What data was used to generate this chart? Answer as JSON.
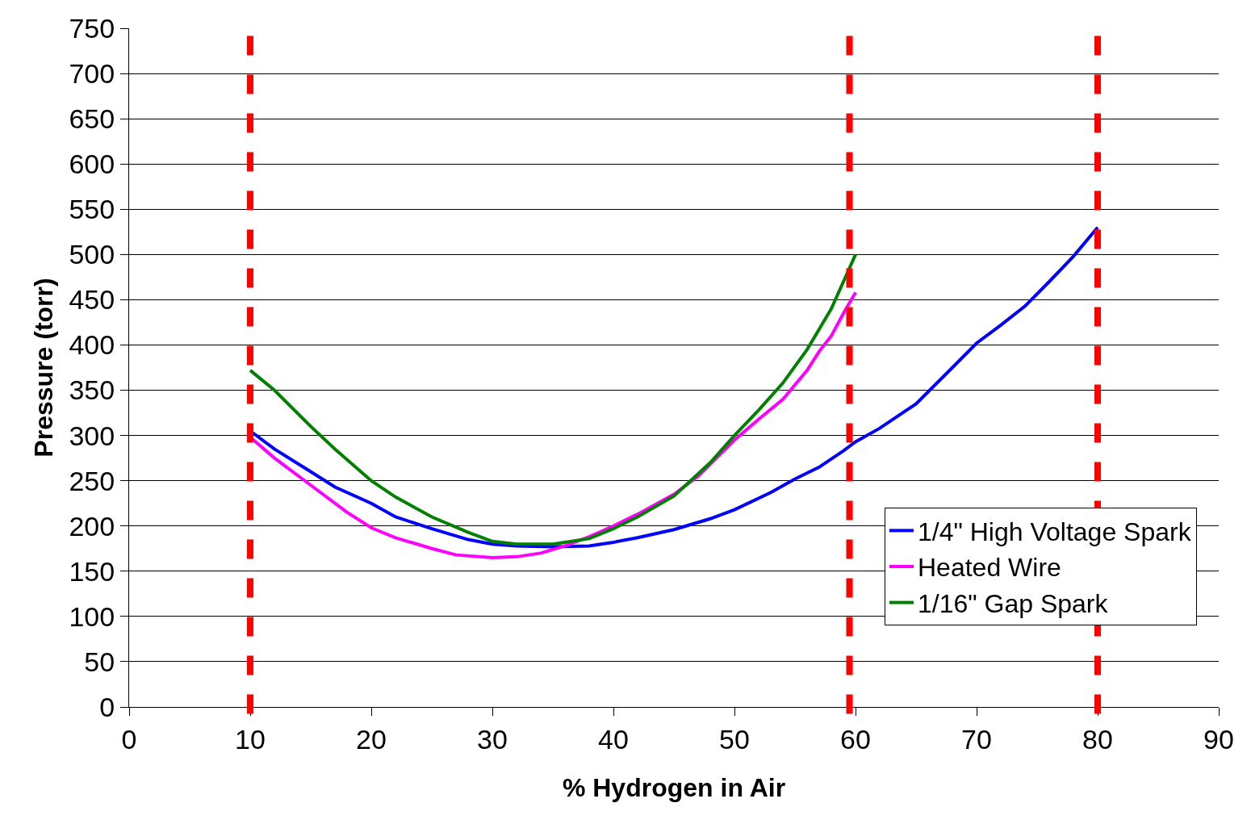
{
  "chart_data": {
    "type": "line",
    "xlabel": "% Hydrogen in Air",
    "ylabel": "Pressure (torr)",
    "xlim": [
      0,
      90
    ],
    "xticks": [
      0,
      10,
      20,
      30,
      40,
      50,
      60,
      70,
      80,
      90
    ],
    "ylim": [
      0,
      750
    ],
    "yticks": [
      0,
      50,
      100,
      150,
      200,
      250,
      300,
      350,
      400,
      450,
      500,
      550,
      600,
      650,
      700,
      750
    ],
    "grid": "y",
    "legend": "bottom right",
    "line_style": "solid",
    "marker": "none",
    "series": [
      {
        "name": "1/4\" High Voltage Spark",
        "color": "#0000ff",
        "x": [
          10,
          12,
          15,
          17,
          20,
          22,
          25,
          28,
          30,
          32,
          35,
          38,
          40,
          42,
          45,
          48,
          50,
          53,
          55,
          57,
          59,
          60,
          62,
          65,
          68,
          70,
          72,
          74,
          76,
          78,
          80
        ],
        "values": [
          305,
          285,
          260,
          243,
          225,
          210,
          197,
          185,
          180,
          178,
          177,
          178,
          182,
          187,
          196,
          208,
          218,
          237,
          252,
          265,
          283,
          293,
          308,
          335,
          375,
          402,
          422,
          443,
          470,
          498,
          530
        ]
      },
      {
        "name": "Heated Wire",
        "color": "#ff00ff",
        "x": [
          10,
          12,
          15,
          18,
          20,
          22,
          25,
          27,
          30,
          32,
          34,
          36,
          38,
          40,
          42,
          45,
          47,
          50,
          52,
          54,
          55,
          56,
          57,
          58,
          59,
          60
        ],
        "values": [
          298,
          275,
          245,
          215,
          198,
          187,
          175,
          168,
          165,
          166,
          170,
          178,
          188,
          200,
          213,
          235,
          255,
          295,
          318,
          340,
          356,
          372,
          393,
          410,
          435,
          458
        ]
      },
      {
        "name": "1/16\" Gap Spark",
        "color": "#008000",
        "x": [
          10,
          12,
          15,
          17,
          20,
          22,
          25,
          28,
          30,
          32,
          35,
          38,
          40,
          42,
          45,
          48,
          50,
          52,
          54,
          56,
          58,
          59,
          60
        ],
        "values": [
          372,
          350,
          310,
          285,
          250,
          232,
          210,
          193,
          183,
          180,
          180,
          186,
          197,
          210,
          233,
          270,
          300,
          328,
          358,
          395,
          440,
          470,
          500
        ]
      }
    ],
    "ref_lines": [
      {
        "axis": "x",
        "value": 10,
        "color": "#ff0000",
        "line_style": "dashed"
      },
      {
        "axis": "x",
        "value": 59.5,
        "color": "#ff0000",
        "line_style": "dashed"
      },
      {
        "axis": "x",
        "value": 80,
        "color": "#ff0000",
        "line_style": "dashed"
      }
    ]
  }
}
